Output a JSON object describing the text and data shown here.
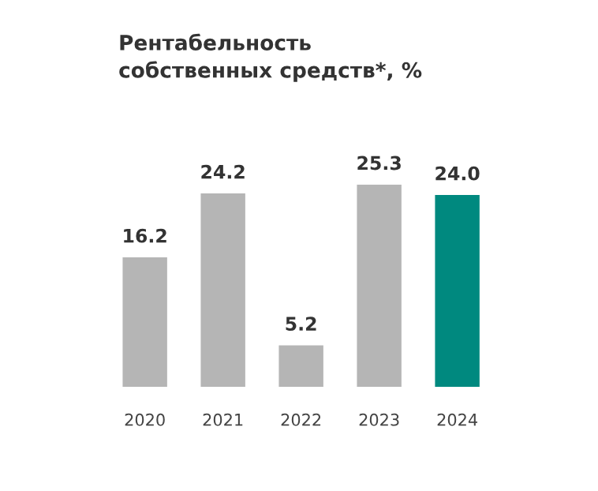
{
  "chart_data": {
    "type": "bar",
    "title": "Рентабельность\nсобственных средств*, %",
    "categories": [
      "2020",
      "2021",
      "2022",
      "2023",
      "2024"
    ],
    "values": [
      16.2,
      24.2,
      5.2,
      25.3,
      24.0
    ],
    "value_labels": [
      "16.2",
      "24.2",
      "5.2",
      "25.3",
      "24.0"
    ],
    "colors": [
      "#b5b5b5",
      "#b5b5b5",
      "#b5b5b5",
      "#b5b5b5",
      "#00897f"
    ],
    "grid": false,
    "legend": false
  }
}
